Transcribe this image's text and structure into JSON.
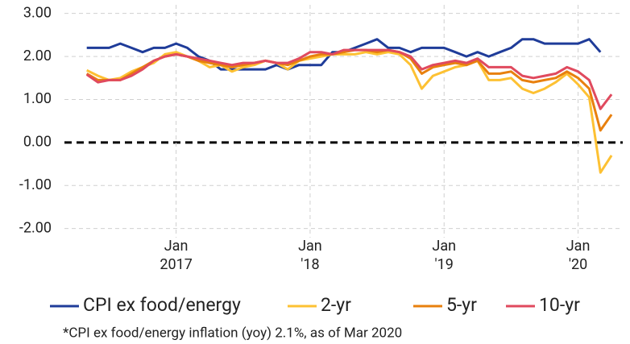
{
  "chart_data": {
    "type": "line",
    "x": [
      "2016-05",
      "2016-06",
      "2016-07",
      "2016-08",
      "2016-09",
      "2016-10",
      "2016-11",
      "2016-12",
      "2017-01",
      "2017-02",
      "2017-03",
      "2017-04",
      "2017-05",
      "2017-06",
      "2017-07",
      "2017-08",
      "2017-09",
      "2017-10",
      "2017-11",
      "2017-12",
      "2018-01",
      "2018-02",
      "2018-03",
      "2018-04",
      "2018-05",
      "2018-06",
      "2018-07",
      "2018-08",
      "2018-09",
      "2018-10",
      "2018-11",
      "2018-12",
      "2019-01",
      "2019-02",
      "2019-03",
      "2019-04",
      "2019-05",
      "2019-06",
      "2019-07",
      "2019-08",
      "2019-09",
      "2019-10",
      "2019-11",
      "2019-12",
      "2020-01",
      "2020-02",
      "2020-03",
      "2020-04"
    ],
    "series": [
      {
        "name": "CPI ex food/energy",
        "color": "#1f3c99",
        "values": [
          2.2,
          2.2,
          2.2,
          2.3,
          2.2,
          2.1,
          2.2,
          2.2,
          2.3,
          2.2,
          2.0,
          1.9,
          1.7,
          1.7,
          1.7,
          1.7,
          1.7,
          1.8,
          1.7,
          1.8,
          1.8,
          1.8,
          2.1,
          2.1,
          2.2,
          2.3,
          2.4,
          2.2,
          2.2,
          2.1,
          2.2,
          2.2,
          2.2,
          2.1,
          2.0,
          2.1,
          2.0,
          2.1,
          2.2,
          2.4,
          2.4,
          2.3,
          2.3,
          2.3,
          2.3,
          2.4,
          2.1,
          null
        ]
      },
      {
        "name": "2-yr",
        "color": "#fdc133",
        "values": [
          1.68,
          1.55,
          1.45,
          1.5,
          1.65,
          1.75,
          1.85,
          2.05,
          2.1,
          2.0,
          1.9,
          1.75,
          1.8,
          1.65,
          1.75,
          1.8,
          1.9,
          1.85,
          1.7,
          1.9,
          1.95,
          2.0,
          2.05,
          2.05,
          2.05,
          2.1,
          2.05,
          2.1,
          2.05,
          1.8,
          1.25,
          1.55,
          1.65,
          1.75,
          1.8,
          1.9,
          1.45,
          1.45,
          1.5,
          1.25,
          1.15,
          1.25,
          1.4,
          1.6,
          1.35,
          1.05,
          -0.7,
          -0.3
        ]
      },
      {
        "name": "5-yr",
        "color": "#e8800e",
        "values": [
          1.6,
          1.45,
          1.45,
          1.45,
          1.6,
          1.75,
          1.9,
          2.0,
          2.05,
          2.0,
          1.9,
          1.85,
          1.8,
          1.75,
          1.8,
          1.85,
          1.9,
          1.85,
          1.8,
          1.9,
          2.0,
          2.05,
          2.05,
          2.1,
          2.15,
          2.15,
          2.1,
          2.15,
          2.1,
          1.95,
          1.6,
          1.75,
          1.8,
          1.85,
          1.8,
          1.9,
          1.6,
          1.6,
          1.65,
          1.45,
          1.4,
          1.45,
          1.5,
          1.65,
          1.5,
          1.25,
          0.28,
          0.65
        ]
      },
      {
        "name": "10-yr",
        "color": "#e04a5e",
        "values": [
          1.58,
          1.4,
          1.45,
          1.45,
          1.55,
          1.7,
          1.9,
          2.0,
          2.05,
          2.0,
          1.95,
          1.9,
          1.85,
          1.8,
          1.85,
          1.85,
          1.9,
          1.85,
          1.85,
          1.95,
          2.1,
          2.1,
          2.05,
          2.15,
          2.15,
          2.15,
          2.15,
          2.15,
          2.1,
          2.0,
          1.7,
          1.8,
          1.85,
          1.9,
          1.85,
          1.95,
          1.75,
          1.75,
          1.75,
          1.55,
          1.5,
          1.55,
          1.6,
          1.75,
          1.65,
          1.45,
          0.78,
          1.12
        ]
      }
    ],
    "xlim": [
      "2016-03",
      "2020-05"
    ],
    "xticks": [
      {
        "value": "2017-01",
        "label": [
          "Jan",
          "2017"
        ]
      },
      {
        "value": "2018-01",
        "label": [
          "Jan",
          "'18"
        ]
      },
      {
        "value": "2019-01",
        "label": [
          "Jan",
          "'19"
        ]
      },
      {
        "value": "2020-01",
        "label": [
          "Jan",
          "'20"
        ]
      }
    ],
    "ylim": [
      -2.4,
      3.2
    ],
    "yticks": [
      {
        "value": 3,
        "label": "3.00"
      },
      {
        "value": 2,
        "label": "2.00"
      },
      {
        "value": 1,
        "label": "1.00"
      },
      {
        "value": 0,
        "label": "0.00"
      },
      {
        "value": -1,
        "label": "-1.00"
      },
      {
        "value": -2,
        "label": "-2.00"
      }
    ],
    "grid": true,
    "legend": "bottom",
    "footnote": "*CPI ex food/energy inflation (yoy) 2.1%, as of Mar 2020"
  }
}
